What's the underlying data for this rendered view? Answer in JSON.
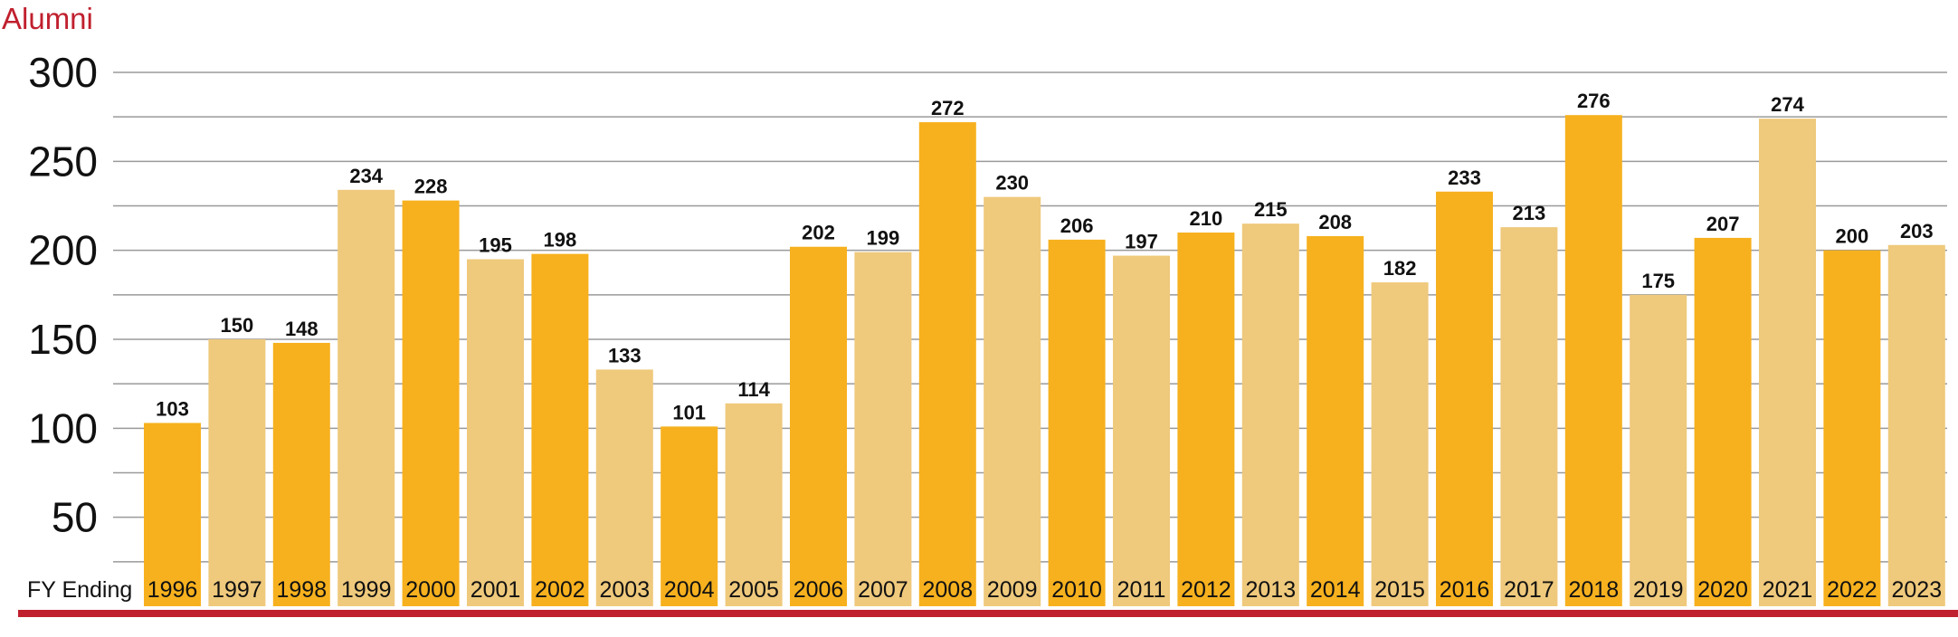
{
  "chart_data": {
    "type": "bar",
    "ylabel": "Alumni",
    "xlabel": "FY Ending",
    "ylim": [
      0,
      300
    ],
    "yticks": [
      50,
      100,
      150,
      200,
      250,
      300
    ],
    "grid": true,
    "categories": [
      "1996",
      "1997",
      "1998",
      "1999",
      "2000",
      "2001",
      "2002",
      "2003",
      "2004",
      "2005",
      "2006",
      "2007",
      "2008",
      "2009",
      "2010",
      "2011",
      "2012",
      "2013",
      "2014",
      "2015",
      "2016",
      "2017",
      "2018",
      "2019",
      "2020",
      "2021",
      "2022",
      "2023"
    ],
    "values": [
      103,
      150,
      148,
      234,
      228,
      195,
      198,
      133,
      101,
      114,
      202,
      199,
      272,
      230,
      206,
      197,
      210,
      215,
      208,
      182,
      233,
      213,
      276,
      175,
      207,
      274,
      200,
      203
    ],
    "bar_colors": [
      "#F7B11E",
      "#EFC97C",
      "#F7B11E",
      "#EFC97C",
      "#F7B11E",
      "#EFC97C",
      "#F7B11E",
      "#EFC97C",
      "#F7B11E",
      "#EFC97C",
      "#F7B11E",
      "#EFC97C",
      "#F7B11E",
      "#EFC97C",
      "#F7B11E",
      "#EFC97C",
      "#F7B11E",
      "#EFC97C",
      "#F7B11E",
      "#EFC97C",
      "#F7B11E",
      "#EFC97C",
      "#F7B11E",
      "#EFC97C",
      "#F7B11E",
      "#EFC97C",
      "#F7B11E",
      "#EFC97C"
    ]
  },
  "colors": {
    "accent": "#C0202E",
    "bar_dark": "#F7B11E",
    "bar_light": "#EFC97C",
    "grid": "#9a9a9a",
    "text": "#111111"
  }
}
